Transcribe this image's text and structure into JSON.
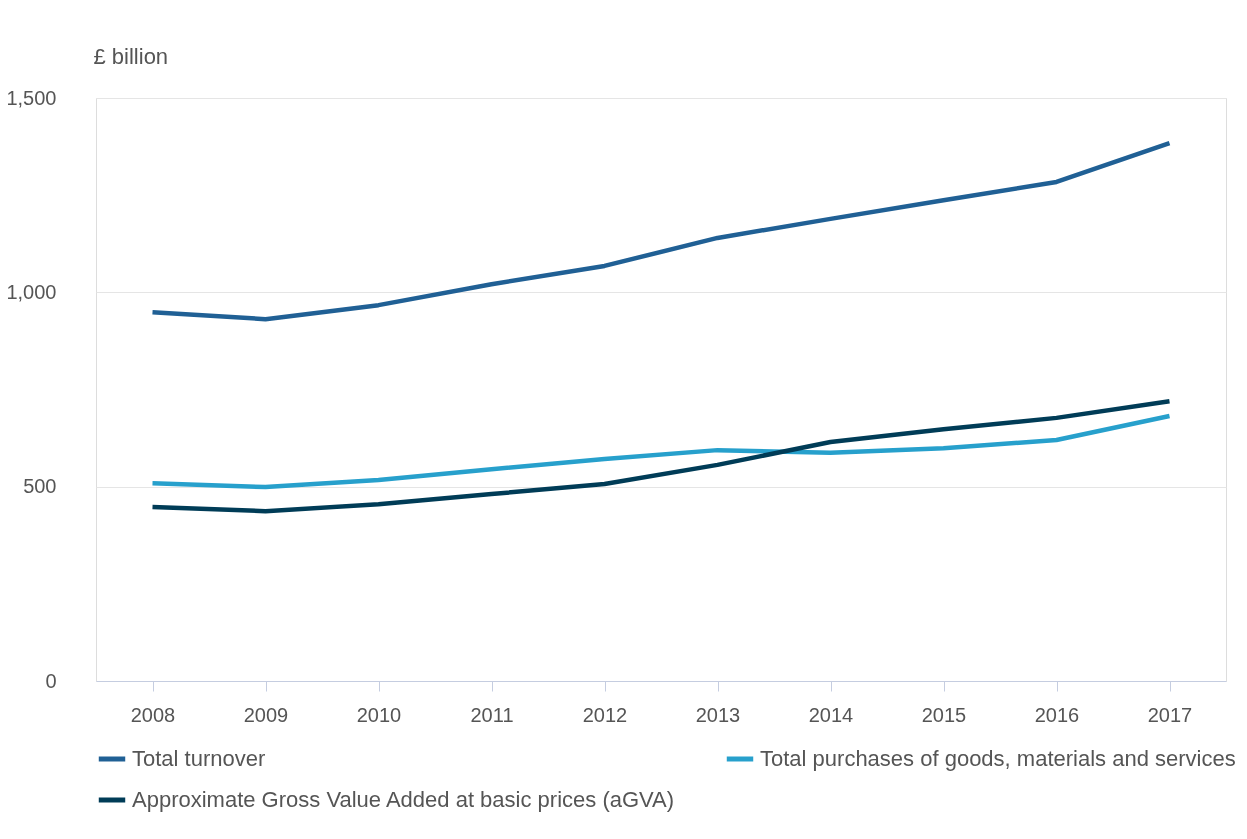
{
  "chart_data": {
    "type": "line",
    "ylabel": "£ billion",
    "categories": [
      "2008",
      "2009",
      "2010",
      "2011",
      "2012",
      "2013",
      "2014",
      "2015",
      "2016",
      "2017"
    ],
    "series": [
      {
        "name": "Total turnover",
        "color": "#206095",
        "values": [
          949,
          931,
          967,
          1021,
          1068,
          1140,
          1189,
          1237,
          1284,
          1384
        ]
      },
      {
        "name": "Total purchases of goods, materials and services",
        "color": "#27a0cc",
        "values": [
          509,
          499,
          517,
          545,
          571,
          594,
          587,
          599,
          620,
          682
        ]
      },
      {
        "name": "Approximate Gross Value Added at basic prices (aGVA)",
        "color": "#003c57",
        "values": [
          448,
          437,
          455,
          481,
          507,
          556,
          615,
          648,
          677,
          720
        ]
      }
    ],
    "ylim": [
      0,
      1500
    ],
    "yticks": [
      0,
      {
        "value": 500,
        "label": "500"
      },
      {
        "value": 1000,
        "label": "1,000"
      },
      {
        "value": 1500,
        "label": "1,500"
      }
    ],
    "grid": "y",
    "legend": "bottom",
    "marker": "none",
    "line_style": "solid"
  }
}
